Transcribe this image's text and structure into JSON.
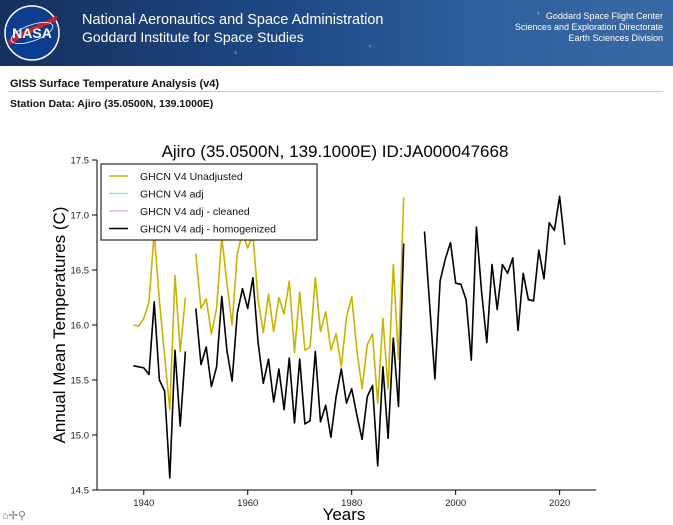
{
  "header": {
    "agency_line1": "National Aeronautics and Space Administration",
    "agency_line2": "Goddard Institute for Space Studies",
    "center_line1": "Goddard Space Flight Center",
    "center_line2": "Sciences and Exploration Directorate",
    "center_line3": "Earth Sciences Division",
    "logo_text": "NASA"
  },
  "page": {
    "title": "GISS Surface Temperature Analysis (v4)",
    "station": "Station Data: Ajiro (35.0500N, 139.1000E)"
  },
  "toolbar": {
    "tools_glyphs": "⌂✢⚲"
  },
  "colors": {
    "unadjusted": "#c8b400",
    "adj": "#a8d8e8",
    "cleaned": "#f0b8c8",
    "homogenized": "#000000"
  },
  "chart_data": {
    "type": "line",
    "title": "Ajiro (35.0500N, 139.1000E) ID:JA000047668",
    "xlabel": "Years",
    "ylabel": "Annual Mean Temperatures (C)",
    "xlim": [
      1931,
      2027
    ],
    "ylim": [
      14.5,
      17.5
    ],
    "xticks": [
      1940,
      1960,
      1980,
      2000,
      2020
    ],
    "xtick_labels": [
      "1940",
      "1960",
      "1980",
      "2000",
      "2020"
    ],
    "yticks": [
      14.5,
      15.0,
      15.5,
      16.0,
      16.5,
      17.0,
      17.5
    ],
    "ytick_labels": [
      "14.5",
      "15.0",
      "15.5",
      "16.0",
      "16.5",
      "17.0",
      "17.5"
    ],
    "legend_position": "top-left",
    "legend": [
      "GHCN V4 Unadjusted",
      "GHCN V4 adj",
      "GHCN V4 adj - cleaned",
      "GHCN V4 adj - homogenized"
    ],
    "series": [
      {
        "name": "GHCN V4 Unadjusted",
        "segments": [
          {
            "x": [
              1938,
              1939,
              1940,
              1941,
              1942,
              1943,
              1944,
              1945,
              1946,
              1947,
              1948
            ],
            "y": [
              16.0,
              15.99,
              16.06,
              16.21,
              16.84,
              16.22,
              15.72,
              15.23,
              16.45,
              15.76,
              16.25
            ]
          },
          {
            "x": [
              1950,
              1951,
              1952,
              1953,
              1954,
              1955,
              1956,
              1957,
              1958,
              1959,
              1960,
              1961,
              1962,
              1963,
              1964,
              1965,
              1966,
              1967,
              1968,
              1969,
              1970,
              1971,
              1972,
              1973,
              1974,
              1975,
              1976,
              1977,
              1978,
              1979,
              1980,
              1981,
              1982,
              1983,
              1984,
              1985,
              1986,
              1987,
              1988,
              1989,
              1990
            ],
            "y": [
              16.65,
              16.15,
              16.24,
              15.92,
              16.15,
              16.8,
              16.38,
              16.0,
              16.65,
              16.84,
              16.7,
              16.82,
              16.23,
              15.93,
              16.28,
              15.94,
              16.25,
              16.1,
              16.4,
              15.75,
              16.3,
              15.77,
              15.8,
              16.43,
              15.94,
              16.12,
              15.77,
              15.92,
              15.62,
              16.07,
              16.26,
              15.77,
              15.42,
              15.82,
              15.92,
              15.29,
              16.06,
              15.42,
              16.55,
              15.69,
              17.16
            ]
          }
        ]
      },
      {
        "name": "GHCN V4 adj",
        "segments": []
      },
      {
        "name": "GHCN V4 adj - cleaned",
        "segments": []
      },
      {
        "name": "GHCN V4 adj - homogenized",
        "segments": [
          {
            "x": [
              1938,
              1939,
              1940,
              1941,
              1942,
              1943,
              1944,
              1945,
              1946,
              1947,
              1948
            ],
            "y": [
              15.63,
              15.62,
              15.61,
              15.55,
              16.21,
              15.5,
              15.4,
              14.61,
              15.77,
              15.08,
              15.76
            ]
          },
          {
            "x": [
              1950,
              1951,
              1952,
              1953,
              1954,
              1955,
              1956,
              1957,
              1958,
              1959,
              1960,
              1961,
              1962,
              1963,
              1964,
              1965,
              1966,
              1967,
              1968,
              1969,
              1970,
              1971,
              1972,
              1973,
              1974,
              1975,
              1976,
              1977,
              1978,
              1979,
              1980,
              1981,
              1982,
              1983,
              1984,
              1985,
              1986,
              1987,
              1988,
              1989,
              1990
            ],
            "y": [
              16.15,
              15.64,
              15.8,
              15.44,
              15.62,
              16.26,
              15.77,
              15.49,
              16.11,
              16.33,
              16.15,
              16.43,
              15.84,
              15.47,
              15.69,
              15.3,
              15.6,
              15.23,
              15.7,
              15.11,
              15.69,
              15.1,
              15.13,
              15.76,
              15.12,
              15.27,
              14.98,
              15.35,
              15.6,
              15.29,
              15.42,
              15.18,
              14.96,
              15.35,
              15.45,
              14.72,
              15.62,
              14.97,
              15.88,
              15.26,
              16.74
            ]
          },
          {
            "x": [
              1994,
              1995,
              1996,
              1997,
              1998,
              1999,
              2000,
              2001,
              2002,
              2003,
              2004,
              2005,
              2006,
              2007,
              2008,
              2009,
              2010,
              2011,
              2012,
              2013,
              2014,
              2015,
              2016,
              2017,
              2018,
              2019,
              2020,
              2021
            ],
            "y": [
              16.85,
              16.18,
              15.51,
              16.4,
              16.6,
              16.75,
              16.38,
              16.37,
              16.23,
              15.68,
              16.89,
              16.3,
              15.84,
              16.55,
              16.14,
              16.55,
              16.47,
              16.61,
              15.95,
              16.47,
              16.23,
              16.22,
              16.68,
              16.42,
              16.93,
              16.86,
              17.17,
              16.73
            ]
          }
        ]
      }
    ]
  }
}
